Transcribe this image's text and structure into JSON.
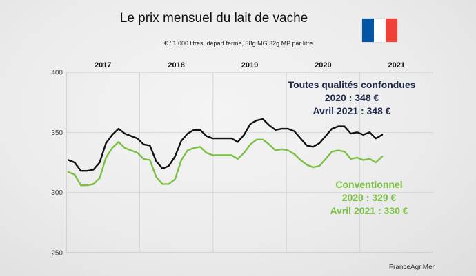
{
  "title": "Le prix mensuel du lait de vache",
  "subtitle": "€ / 1 000 litres, départ ferme, 38g MG 32g MP par litre",
  "source": "FranceAgriMer",
  "flag": {
    "blue": "#0055a4",
    "white": "#ffffff",
    "red": "#ef4135"
  },
  "annotations": {
    "total": {
      "l1": "Toutes qualités confondues",
      "l2": "2020 : 348 €",
      "l3": "Avril 2021 :  348 €"
    },
    "conventional": {
      "l1": "Conventionnel",
      "l2": "2020 : 329 €",
      "l3": "Avril 2021 : 330 €"
    }
  },
  "chart_data": {
    "type": "line",
    "title": "Le prix mensuel du lait de vache",
    "ylabel": "€ / 1 000 litres",
    "ylim": [
      250,
      400
    ],
    "yticks": [
      250,
      300,
      350,
      400
    ],
    "year_labels": [
      "2017",
      "2018",
      "2019",
      "2020",
      "2021"
    ],
    "series": [
      {
        "name": "Toutes qualités confondues",
        "color": "#111111",
        "values": [
          327,
          325,
          318,
          318,
          319,
          325,
          341,
          348,
          353,
          349,
          347,
          345,
          340,
          339,
          326,
          320,
          322,
          330,
          343,
          349,
          352,
          352,
          347,
          345,
          345,
          345,
          345,
          342,
          348,
          357,
          360,
          361,
          356,
          352,
          353,
          353,
          351,
          345,
          339,
          338,
          341,
          347,
          353,
          355,
          355,
          349,
          350,
          348,
          350,
          345,
          348
        ]
      },
      {
        "name": "Conventionnel",
        "color": "#7bc043",
        "values": [
          317,
          315,
          306,
          306,
          307,
          312,
          329,
          337,
          342,
          337,
          335,
          333,
          328,
          327,
          313,
          307,
          307,
          311,
          327,
          335,
          337,
          338,
          333,
          331,
          331,
          331,
          331,
          328,
          333,
          340,
          344,
          344,
          340,
          335,
          336,
          335,
          332,
          327,
          323,
          321,
          322,
          328,
          334,
          335,
          334,
          328,
          329,
          327,
          328,
          325,
          330
        ]
      }
    ]
  }
}
